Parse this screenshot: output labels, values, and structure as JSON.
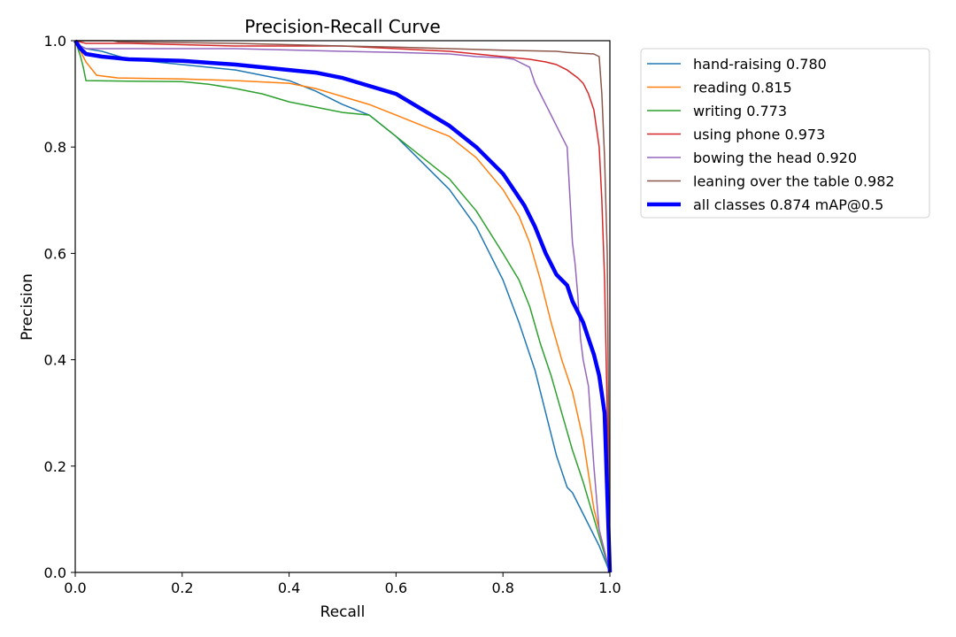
{
  "chart_data": {
    "type": "line",
    "title": "Precision-Recall Curve",
    "xlabel": "Recall",
    "ylabel": "Precision",
    "xlim": [
      0,
      1
    ],
    "ylim": [
      0,
      1
    ],
    "x_ticks": [
      "0.0",
      "0.2",
      "0.4",
      "0.6",
      "0.8",
      "1.0"
    ],
    "y_ticks": [
      "0.0",
      "0.2",
      "0.4",
      "0.6",
      "0.8",
      "1.0"
    ],
    "grid": false,
    "legend_position": "outside-top-right",
    "series": [
      {
        "name": "hand-raising 0.780",
        "color": "#1f77b4",
        "x": [
          0,
          0.01,
          0.02,
          0.05,
          0.1,
          0.2,
          0.3,
          0.4,
          0.45,
          0.5,
          0.55,
          0.6,
          0.65,
          0.7,
          0.75,
          0.8,
          0.83,
          0.86,
          0.88,
          0.9,
          0.92,
          0.93,
          0.95,
          0.98,
          1.0
        ],
        "y": [
          1.0,
          0.99,
          0.985,
          0.98,
          0.965,
          0.955,
          0.945,
          0.925,
          0.905,
          0.88,
          0.86,
          0.82,
          0.77,
          0.72,
          0.65,
          0.55,
          0.47,
          0.38,
          0.3,
          0.22,
          0.16,
          0.15,
          0.11,
          0.05,
          0.0
        ]
      },
      {
        "name": "reading 0.815",
        "color": "#ff7f0e",
        "x": [
          0,
          0.01,
          0.02,
          0.04,
          0.08,
          0.2,
          0.3,
          0.4,
          0.45,
          0.5,
          0.55,
          0.6,
          0.65,
          0.7,
          0.75,
          0.8,
          0.83,
          0.85,
          0.87,
          0.89,
          0.91,
          0.93,
          0.95,
          0.97,
          1.0
        ],
        "y": [
          1.0,
          0.98,
          0.96,
          0.935,
          0.93,
          0.928,
          0.925,
          0.92,
          0.91,
          0.895,
          0.88,
          0.86,
          0.84,
          0.82,
          0.78,
          0.72,
          0.67,
          0.62,
          0.55,
          0.47,
          0.4,
          0.34,
          0.25,
          0.12,
          0.0
        ]
      },
      {
        "name": "writing 0.773",
        "color": "#2ca02c",
        "x": [
          0,
          0.01,
          0.015,
          0.02,
          0.1,
          0.2,
          0.25,
          0.3,
          0.35,
          0.4,
          0.45,
          0.5,
          0.55,
          0.6,
          0.65,
          0.7,
          0.75,
          0.8,
          0.83,
          0.85,
          0.87,
          0.89,
          0.91,
          0.93,
          0.95,
          1.0
        ],
        "y": [
          1.0,
          0.97,
          0.95,
          0.925,
          0.924,
          0.923,
          0.918,
          0.91,
          0.9,
          0.885,
          0.875,
          0.865,
          0.86,
          0.82,
          0.78,
          0.74,
          0.68,
          0.6,
          0.55,
          0.5,
          0.43,
          0.37,
          0.3,
          0.23,
          0.17,
          0.0
        ]
      },
      {
        "name": "using phone 0.973",
        "color": "#d62728",
        "x": [
          0,
          0.02,
          0.05,
          0.1,
          0.3,
          0.5,
          0.6,
          0.7,
          0.75,
          0.8,
          0.85,
          0.88,
          0.9,
          0.92,
          0.94,
          0.95,
          0.96,
          0.97,
          0.98,
          0.985,
          0.99,
          0.995,
          1.0
        ],
        "y": [
          1.0,
          0.995,
          0.995,
          0.995,
          0.99,
          0.99,
          0.985,
          0.98,
          0.975,
          0.97,
          0.965,
          0.96,
          0.955,
          0.945,
          0.93,
          0.92,
          0.9,
          0.87,
          0.8,
          0.7,
          0.55,
          0.3,
          0.0
        ]
      },
      {
        "name": "bowing the head 0.920",
        "color": "#9467bd",
        "x": [
          0,
          0.01,
          0.02,
          0.04,
          0.1,
          0.3,
          0.5,
          0.6,
          0.7,
          0.75,
          0.8,
          0.82,
          0.85,
          0.86,
          0.87,
          0.88,
          0.89,
          0.9,
          0.91,
          0.92,
          0.93,
          0.935,
          0.94,
          0.945,
          0.95,
          0.96,
          0.97,
          0.98,
          1.0
        ],
        "y": [
          1.0,
          0.99,
          0.985,
          0.985,
          0.985,
          0.985,
          0.98,
          0.978,
          0.975,
          0.97,
          0.968,
          0.965,
          0.95,
          0.92,
          0.9,
          0.88,
          0.86,
          0.84,
          0.82,
          0.8,
          0.62,
          0.58,
          0.52,
          0.44,
          0.4,
          0.35,
          0.2,
          0.08,
          0.0
        ]
      },
      {
        "name": "leaning over the table 0.982",
        "color": "#8c564b",
        "x": [
          0,
          0.07,
          0.08,
          0.3,
          0.5,
          0.6,
          0.7,
          0.8,
          0.9,
          0.92,
          0.95,
          0.97,
          0.98,
          0.985,
          0.99,
          0.995,
          1.0
        ],
        "y": [
          1.0,
          1.0,
          0.998,
          0.995,
          0.99,
          0.988,
          0.985,
          0.982,
          0.98,
          0.978,
          0.976,
          0.975,
          0.97,
          0.9,
          0.78,
          0.6,
          0.0
        ]
      },
      {
        "name": "all classes 0.874 mAP@0.5",
        "color": "#0000ff",
        "bold": true,
        "x": [
          0,
          0.01,
          0.02,
          0.05,
          0.1,
          0.2,
          0.3,
          0.4,
          0.45,
          0.5,
          0.55,
          0.6,
          0.65,
          0.7,
          0.75,
          0.8,
          0.82,
          0.84,
          0.86,
          0.88,
          0.9,
          0.92,
          0.93,
          0.94,
          0.95,
          0.96,
          0.97,
          0.98,
          0.99,
          1.0
        ],
        "y": [
          1.0,
          0.985,
          0.975,
          0.97,
          0.965,
          0.962,
          0.955,
          0.945,
          0.94,
          0.93,
          0.915,
          0.9,
          0.87,
          0.84,
          0.8,
          0.75,
          0.72,
          0.69,
          0.65,
          0.6,
          0.56,
          0.54,
          0.51,
          0.49,
          0.47,
          0.44,
          0.41,
          0.37,
          0.3,
          0.0
        ]
      }
    ]
  }
}
